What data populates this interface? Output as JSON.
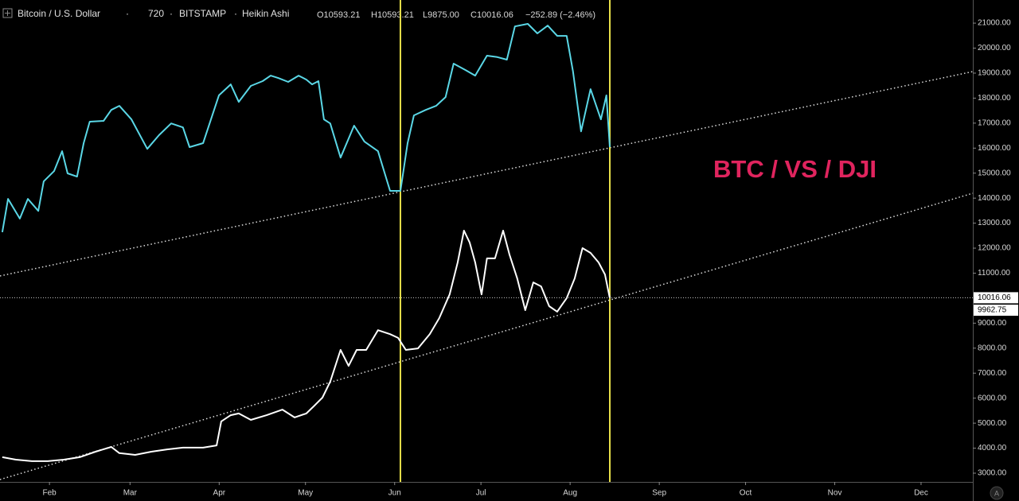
{
  "header": {
    "symbol": "Bitcoin / U.S. Dollar",
    "interval": "720",
    "exchange": "BITSTAMP",
    "style": "Heikin Ashi",
    "open": "O10593.21",
    "high": "H10593.21",
    "low": "L9875.00",
    "close": "C10016.06",
    "change": "−252.89 (−2.46%)"
  },
  "chart_data": {
    "type": "line",
    "annotation": "BTC / VS / DJI",
    "xlim": [
      14.8,
      353
    ],
    "ylim": [
      2650,
      21925
    ],
    "xticks": [
      {
        "value": 32,
        "label": "Feb"
      },
      {
        "value": 60,
        "label": "Mar"
      },
      {
        "value": 91,
        "label": "Apr"
      },
      {
        "value": 121,
        "label": "May"
      },
      {
        "value": 152,
        "label": "Jun"
      },
      {
        "value": 182,
        "label": "Jul"
      },
      {
        "value": 213,
        "label": "Aug"
      },
      {
        "value": 244,
        "label": "Sep"
      },
      {
        "value": 274,
        "label": "Oct"
      },
      {
        "value": 305,
        "label": "Nov"
      },
      {
        "value": 335,
        "label": "Dec"
      }
    ],
    "yticks": [
      {
        "value": 21000,
        "label": "21000.00"
      },
      {
        "value": 20000,
        "label": "20000.00"
      },
      {
        "value": 19000,
        "label": "19000.00"
      },
      {
        "value": 18000,
        "label": "18000.00"
      },
      {
        "value": 17000,
        "label": "17000.00"
      },
      {
        "value": 16000,
        "label": "16000.00"
      },
      {
        "value": 15000,
        "label": "15000.00"
      },
      {
        "value": 14000,
        "label": "14000.00"
      },
      {
        "value": 13000,
        "label": "13000.00"
      },
      {
        "value": 12000,
        "label": "12000.00"
      },
      {
        "value": 11000,
        "label": "11000.00"
      },
      {
        "value": 9000,
        "label": "9000.00"
      },
      {
        "value": 8000,
        "label": "8000.00"
      },
      {
        "value": 7000,
        "label": "7000.00"
      },
      {
        "value": 6000,
        "label": "6000.00"
      },
      {
        "value": 5000,
        "label": "5000.00"
      },
      {
        "value": 4000,
        "label": "4000.00"
      },
      {
        "value": 3000,
        "label": "3000.00"
      }
    ],
    "price_labels": [
      {
        "value": 10016.06,
        "label": "10016.06"
      },
      {
        "value": 9962.75,
        "label": "9962.75"
      }
    ],
    "vlines": {
      "color": "#e8e04a",
      "x": [
        154.0,
        226.8
      ]
    },
    "trendlines": [
      {
        "x": [
          14.8,
          353
        ],
        "values": [
          10888,
          19062
        ]
      },
      {
        "x": [
          14.8,
          353
        ],
        "values": [
          2746,
          14196
        ]
      }
    ],
    "series": [
      {
        "color": "#5ad7e6",
        "x": [
          15.6,
          17.6,
          21.7,
          24.5,
          28.1,
          30,
          33.6,
          36.4,
          38.3,
          41.6,
          43.9,
          46,
          50.8,
          53.5,
          56.3,
          60.5,
          66,
          70.1,
          74.3,
          78.4,
          80.7,
          85.4,
          90.9,
          95,
          97.8,
          102,
          106.1,
          108.9,
          111.6,
          115,
          118.6,
          121.3,
          123.3,
          125.5,
          127.4,
          129.6,
          133.2,
          137.9,
          141.5,
          146.2,
          150.4,
          154,
          156.5,
          158.7,
          162.8,
          166.4,
          169.7,
          172.5,
          176.7,
          180,
          184.1,
          187.7,
          191,
          193.8,
          198.3,
          201.6,
          205.2,
          208.5,
          211.8,
          214,
          216.8,
          220.1,
          223.7,
          225.6,
          226.8
        ],
        "values": [
          12640,
          13970,
          13180,
          13970,
          13490,
          14670,
          15080,
          15880,
          14990,
          14860,
          16200,
          17060,
          17090,
          17530,
          17690,
          17150,
          15970,
          16520,
          16990,
          16830,
          16040,
          16200,
          18110,
          18550,
          17850,
          18490,
          18680,
          18900,
          18800,
          18650,
          18900,
          18740,
          18550,
          18680,
          17150,
          16990,
          15620,
          16900,
          16260,
          15880,
          14290,
          14290,
          16200,
          17310,
          17530,
          17690,
          18040,
          19380,
          19120,
          18900,
          19700,
          19640,
          19540,
          20870,
          20970,
          20590,
          20900,
          20490,
          20490,
          19060,
          16670,
          18360,
          17150,
          18110,
          16040
        ]
      },
      {
        "color": "#ffffff",
        "x": [
          15.6,
          20.3,
          25.9,
          31.4,
          37,
          42.5,
          48,
          53.5,
          56.3,
          61.8,
          67.4,
          72.9,
          78.4,
          85.4,
          90.1,
          91.7,
          95,
          97.8,
          102,
          107.5,
          113,
          117.2,
          121.3,
          124.1,
          126.9,
          129.6,
          133.2,
          136,
          138.8,
          142.1,
          146.2,
          150.4,
          153.2,
          155.9,
          160.1,
          164.2,
          167.5,
          171.1,
          173.9,
          176.1,
          178.1,
          180,
          182.2,
          184.1,
          186.9,
          189.7,
          191.9,
          194.6,
          197.4,
          200.2,
          202.9,
          205.7,
          208.5,
          211.8,
          214.6,
          217.3,
          220.1,
          222.9,
          225.1,
          226.8
        ],
        "values": [
          3640,
          3540,
          3480,
          3480,
          3540,
          3640,
          3860,
          4050,
          3800,
          3730,
          3860,
          3950,
          4020,
          4020,
          4110,
          5070,
          5320,
          5390,
          5130,
          5320,
          5540,
          5230,
          5390,
          5700,
          6020,
          6660,
          7930,
          7290,
          7930,
          7930,
          8720,
          8560,
          8410,
          7930,
          7990,
          8560,
          9200,
          10150,
          11430,
          12700,
          12220,
          11430,
          10150,
          11590,
          11590,
          12700,
          11750,
          10790,
          9520,
          10630,
          10470,
          9680,
          9460,
          10000,
          10790,
          12000,
          11810,
          11430,
          10950,
          10000
        ]
      }
    ]
  }
}
